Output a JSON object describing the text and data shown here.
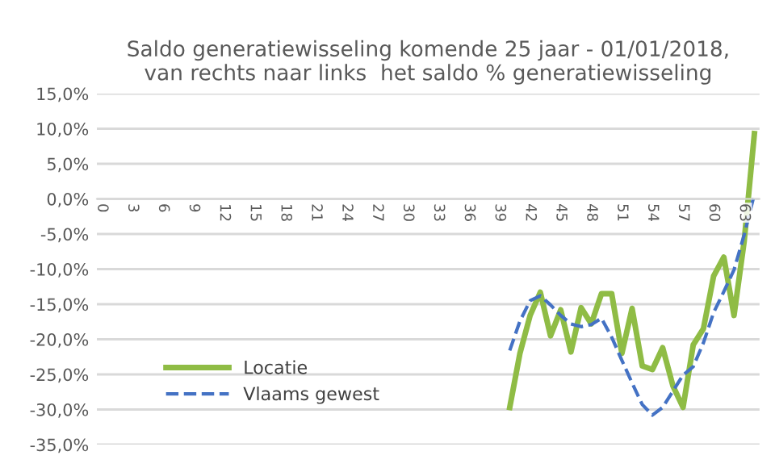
{
  "chart_data": {
    "type": "line",
    "title": "Saldo generatiewisseling komende 25 jaar - 01/01/2018,\nvan rechts naar links  het saldo % generatiewisseling",
    "categories": [
      "0",
      null,
      null,
      "3",
      null,
      null,
      "6",
      null,
      null,
      "9",
      null,
      null,
      "12",
      null,
      null,
      "15",
      null,
      null,
      "18",
      null,
      null,
      "21",
      null,
      null,
      "24",
      null,
      null,
      "27",
      null,
      null,
      "30",
      null,
      null,
      "33",
      null,
      null,
      "36",
      null,
      null,
      "39",
      null,
      null,
      "42",
      null,
      null,
      "45",
      null,
      null,
      "48",
      null,
      null,
      "51",
      null,
      null,
      "54",
      null,
      null,
      "57",
      null,
      null,
      "60",
      null,
      null,
      "63",
      null
    ],
    "series": [
      {
        "name": "Locatie",
        "color": "#8fbc45",
        "line_style": "solid",
        "values": [
          null,
          null,
          null,
          null,
          null,
          null,
          null,
          null,
          null,
          null,
          null,
          null,
          null,
          null,
          null,
          null,
          null,
          null,
          null,
          null,
          null,
          null,
          null,
          null,
          null,
          null,
          null,
          null,
          null,
          null,
          null,
          null,
          null,
          null,
          null,
          null,
          null,
          null,
          null,
          null,
          -29.7,
          -22,
          -16.6,
          -13.3,
          -19.5,
          -15.8,
          -21.8,
          -15.5,
          -17.8,
          -13.5,
          -13.5,
          -22,
          -15.6,
          -23.8,
          -24.3,
          -21.2,
          -26.6,
          -29.7,
          -20.8,
          -18.5,
          -11,
          -8.3,
          -16.6,
          -6,
          9.3
        ]
      },
      {
        "name": "Vlaams gewest",
        "color": "#4472c4",
        "line_style": "dashed",
        "values": [
          null,
          null,
          null,
          null,
          null,
          null,
          null,
          null,
          null,
          null,
          null,
          null,
          null,
          null,
          null,
          null,
          null,
          null,
          null,
          null,
          null,
          null,
          null,
          null,
          null,
          null,
          null,
          null,
          null,
          null,
          null,
          null,
          null,
          null,
          null,
          null,
          null,
          null,
          null,
          null,
          -21.6,
          -17.4,
          -14.5,
          -13.8,
          -15.1,
          -16.6,
          -17.8,
          -18.2,
          -17.9,
          -17,
          -19.7,
          -23,
          -26.2,
          -29.3,
          -30.8,
          -29.7,
          -27.4,
          -25.1,
          -23.9,
          -20.5,
          -16.2,
          -13.2,
          -10.1,
          -5.1,
          0.7
        ]
      }
    ],
    "ylim": [
      -35,
      15
    ],
    "yticks": [
      {
        "value": -35,
        "label": "-35,0%"
      },
      {
        "value": -30,
        "label": "-30,0%"
      },
      {
        "value": -25,
        "label": "-25,0%"
      },
      {
        "value": -20,
        "label": "-20,0%"
      },
      {
        "value": -15,
        "label": "-15,0%"
      },
      {
        "value": -10,
        "label": "-10,0%"
      },
      {
        "value": -5,
        "label": "-5,0%"
      },
      {
        "value": 0,
        "label": "0,0%"
      },
      {
        "value": 5,
        "label": "5,0%"
      },
      {
        "value": 10,
        "label": "10,0%"
      },
      {
        "value": 15,
        "label": "15,0%"
      }
    ],
    "grid": "y",
    "legend": "bottom left",
    "marker": "none"
  }
}
